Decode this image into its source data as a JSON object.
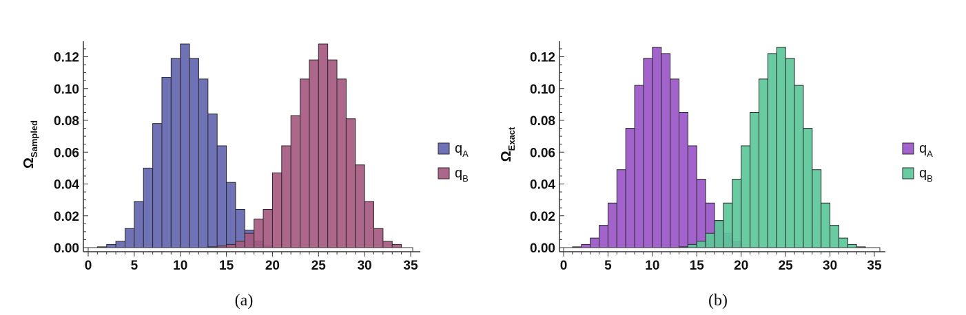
{
  "chart_data": [
    {
      "type": "bar",
      "panel_caption": "(a)",
      "ylabel": "Ω",
      "ylabel_sub": "Sampled",
      "xlim": [
        -0.5,
        35.5
      ],
      "ylim": [
        0,
        0.13
      ],
      "xticks": [
        0,
        5,
        10,
        15,
        20,
        25,
        30,
        35
      ],
      "yticks": [
        0.0,
        0.02,
        0.04,
        0.06,
        0.08,
        0.1,
        0.12
      ],
      "ytick_labels": [
        "0.00",
        "0.02",
        "0.04",
        "0.06",
        "0.08",
        "0.10",
        "0.12"
      ],
      "bin_width": 1,
      "series": [
        {
          "name": "q",
          "sub": "A",
          "color": "#6466b0",
          "bin_starts": [
            1,
            2,
            3,
            4,
            5,
            6,
            7,
            8,
            9,
            10,
            11,
            12,
            13,
            14,
            15,
            16,
            17,
            18,
            19
          ],
          "values": [
            0.0005,
            0.002,
            0.004,
            0.012,
            0.029,
            0.05,
            0.078,
            0.107,
            0.119,
            0.128,
            0.119,
            0.106,
            0.084,
            0.064,
            0.041,
            0.024,
            0.011,
            0.004,
            0.001
          ]
        },
        {
          "name": "q",
          "sub": "B",
          "color": "#a65a80",
          "bin_starts": [
            13,
            14,
            15,
            16,
            17,
            18,
            19,
            20,
            21,
            22,
            23,
            24,
            25,
            26,
            27,
            28,
            29,
            30,
            31,
            32,
            33
          ],
          "values": [
            0.0005,
            0.001,
            0.002,
            0.004,
            0.009,
            0.018,
            0.024,
            0.047,
            0.064,
            0.083,
            0.106,
            0.118,
            0.128,
            0.118,
            0.106,
            0.081,
            0.052,
            0.029,
            0.012,
            0.004,
            0.002
          ]
        }
      ]
    },
    {
      "type": "bar",
      "panel_caption": "(b)",
      "ylabel": "Ω",
      "ylabel_sub": "Exact",
      "xlim": [
        -0.5,
        35.5
      ],
      "ylim": [
        0,
        0.13
      ],
      "xticks": [
        0,
        5,
        10,
        15,
        20,
        25,
        30,
        35
      ],
      "yticks": [
        0.0,
        0.02,
        0.04,
        0.06,
        0.08,
        0.1,
        0.12
      ],
      "ytick_labels": [
        "0.00",
        "0.02",
        "0.04",
        "0.06",
        "0.08",
        "0.10",
        "0.12"
      ],
      "bin_width": 1,
      "series": [
        {
          "name": "q",
          "sub": "A",
          "color": "#9b56c9",
          "bin_starts": [
            1,
            2,
            3,
            4,
            5,
            6,
            7,
            8,
            9,
            10,
            11,
            12,
            13,
            14,
            15,
            16,
            17,
            18,
            19
          ],
          "values": [
            0.0005,
            0.002,
            0.006,
            0.014,
            0.028,
            0.049,
            0.075,
            0.102,
            0.119,
            0.126,
            0.122,
            0.106,
            0.085,
            0.064,
            0.043,
            0.028,
            0.017,
            0.009,
            0.004
          ]
        },
        {
          "name": "q",
          "sub": "B",
          "color": "#5cc79a",
          "bin_starts": [
            13,
            14,
            15,
            16,
            17,
            18,
            19,
            20,
            21,
            22,
            23,
            24,
            25,
            26,
            27,
            28,
            29,
            30,
            31,
            32,
            33
          ],
          "values": [
            0.0005,
            0.002,
            0.004,
            0.009,
            0.017,
            0.028,
            0.043,
            0.064,
            0.085,
            0.106,
            0.122,
            0.126,
            0.119,
            0.102,
            0.075,
            0.049,
            0.028,
            0.014,
            0.006,
            0.002,
            0.0005
          ]
        }
      ]
    }
  ]
}
